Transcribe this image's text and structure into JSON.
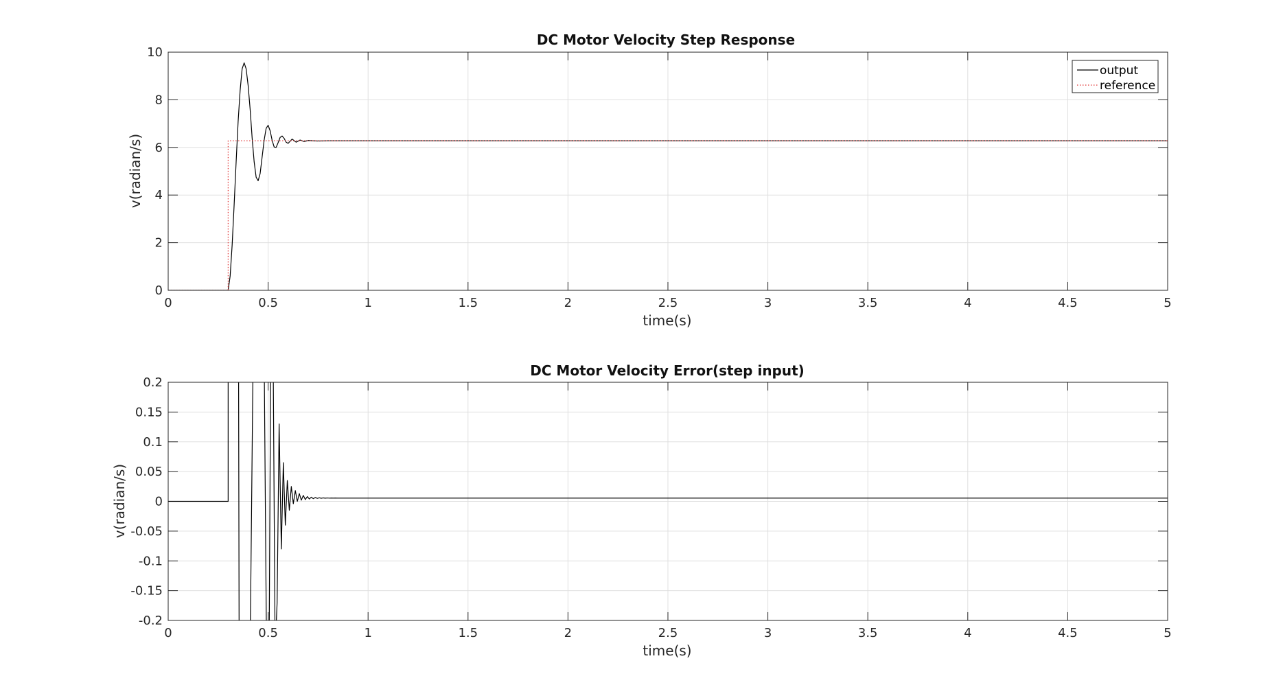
{
  "chart_data": [
    {
      "type": "line",
      "title": "DC Motor Velocity Step Response",
      "xlabel": "time(s)",
      "ylabel": "v(radian/s)",
      "xlim": [
        0,
        5
      ],
      "ylim": [
        0,
        10
      ],
      "xticks": [
        0,
        0.5,
        1,
        1.5,
        2,
        2.5,
        3,
        3.5,
        4,
        4.5,
        5
      ],
      "xtick_labels": [
        "0",
        "0.5",
        "1",
        "1.5",
        "2",
        "2.5",
        "3",
        "3.5",
        "4",
        "4.5",
        "5"
      ],
      "yticks": [
        0,
        2,
        4,
        6,
        8,
        10
      ],
      "ytick_labels": [
        "0",
        "2",
        "4",
        "6",
        "8",
        "10"
      ],
      "grid": true,
      "legend_location": "top-right",
      "series": [
        {
          "name": "output",
          "color": "#000000",
          "style": "solid",
          "x": [
            0,
            0.3,
            0.31,
            0.32,
            0.33,
            0.34,
            0.35,
            0.36,
            0.37,
            0.38,
            0.39,
            0.4,
            0.41,
            0.42,
            0.43,
            0.44,
            0.45,
            0.46,
            0.47,
            0.48,
            0.49,
            0.5,
            0.51,
            0.52,
            0.53,
            0.54,
            0.55,
            0.56,
            0.57,
            0.58,
            0.59,
            0.6,
            0.62,
            0.64,
            0.66,
            0.68,
            0.7,
            0.75,
            0.8,
            1.0,
            5.0
          ],
          "y": [
            0,
            0,
            0.6,
            1.9,
            3.6,
            5.4,
            7.1,
            8.4,
            9.3,
            9.55,
            9.3,
            8.6,
            7.6,
            6.4,
            5.4,
            4.75,
            4.6,
            4.9,
            5.6,
            6.3,
            6.8,
            6.93,
            6.7,
            6.3,
            6.02,
            6.0,
            6.2,
            6.42,
            6.48,
            6.38,
            6.22,
            6.17,
            6.35,
            6.22,
            6.31,
            6.25,
            6.29,
            6.27,
            6.28,
            6.28,
            6.28
          ]
        },
        {
          "name": "reference",
          "color": "#e03030",
          "style": "dotted",
          "x": [
            0,
            0.3,
            0.3,
            5.0
          ],
          "y": [
            0,
            0,
            6.28,
            6.28
          ]
        }
      ]
    },
    {
      "type": "line",
      "title": "DC Motor Velocity Error(step input)",
      "xlabel": "time(s)",
      "ylabel": "v(radian/s)",
      "xlim": [
        0,
        5
      ],
      "ylim": [
        -0.2,
        0.2
      ],
      "xticks": [
        0,
        0.5,
        1,
        1.5,
        2,
        2.5,
        3,
        3.5,
        4,
        4.5,
        5
      ],
      "xtick_labels": [
        "0",
        "0.5",
        "1",
        "1.5",
        "2",
        "2.5",
        "3",
        "3.5",
        "4",
        "4.5",
        "5"
      ],
      "yticks": [
        -0.2,
        -0.15,
        -0.1,
        -0.05,
        0,
        0.05,
        0.1,
        0.15,
        0.2
      ],
      "ytick_labels": [
        "-0.2",
        "-0.15",
        "-0.1",
        "-0.05",
        "0",
        "0.05",
        "0.1",
        "0.15",
        "0.2"
      ],
      "grid": true,
      "series": [
        {
          "color": "#000000",
          "style": "solid",
          "x": [
            0,
            0.3,
            0.3,
            0.352,
            0.355,
            0.41,
            0.425,
            0.48,
            0.492,
            0.505,
            0.513,
            0.525,
            0.535,
            0.545,
            0.555,
            0.566,
            0.576,
            0.586,
            0.596,
            0.606,
            0.616,
            0.626,
            0.636,
            0.646,
            0.656,
            0.666,
            0.676,
            0.686,
            0.696,
            0.706,
            0.716,
            0.726,
            0.736,
            0.746,
            0.756,
            0.766,
            0.776,
            0.786,
            0.796,
            0.806,
            0.816,
            0.826,
            0.836,
            0.846,
            0.856,
            0.866,
            0.876,
            0.9,
            5.0
          ],
          "y": [
            0,
            0,
            0.25,
            0.25,
            -0.25,
            -0.25,
            0.25,
            0.25,
            -0.25,
            -0.25,
            0.25,
            0.25,
            -0.25,
            -0.17,
            0.13,
            -0.08,
            0.065,
            -0.04,
            0.035,
            -0.015,
            0.025,
            -0.004,
            0.018,
            0.0,
            0.013,
            0.002,
            0.01,
            0.003,
            0.008,
            0.004,
            0.007,
            0.0045,
            0.0065,
            0.005,
            0.006,
            0.0052,
            0.0058,
            0.0053,
            0.0057,
            0.0054,
            0.0056,
            0.0055,
            0.0056,
            0.0055,
            0.0055,
            0.0055,
            0.0055,
            0.0055,
            0.0055
          ]
        }
      ]
    }
  ]
}
